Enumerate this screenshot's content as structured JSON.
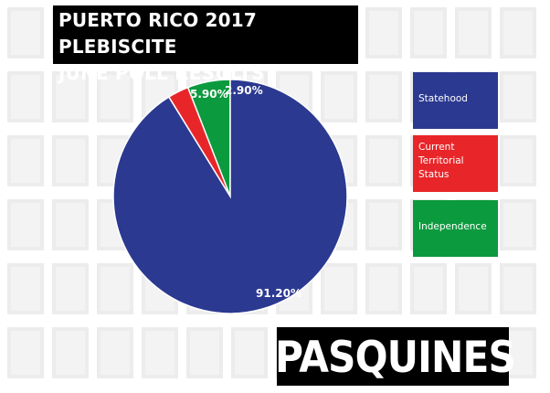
{
  "title": {
    "line1": "PUERTO RICO 2017 PLEBISCITE",
    "line2": "JUNE POLL RESULTS"
  },
  "brand": "PASQUINES",
  "chart_data": {
    "type": "pie",
    "title": "PUERTO RICO 2017 PLEBISCITE JUNE POLL RESULTS",
    "slices": [
      {
        "label": "Independence",
        "value": 5.9,
        "display": "5.90%",
        "color": "#0c9a3e"
      },
      {
        "label": "Current Territorial Status",
        "value": 2.9,
        "display": "2.90%",
        "color": "#e8262a"
      },
      {
        "label": "Statehood",
        "value": 91.2,
        "display": "91.20%",
        "color": "#2b3990"
      }
    ],
    "legend_position": "right",
    "legend": [
      {
        "label": "Statehood",
        "color": "#2b3990"
      },
      {
        "label": "Current Territorial Status",
        "color": "#e8262a",
        "lines": [
          "Current",
          "Territorial",
          "Status"
        ]
      },
      {
        "label": "Independence",
        "color": "#0c9a3e"
      }
    ]
  }
}
